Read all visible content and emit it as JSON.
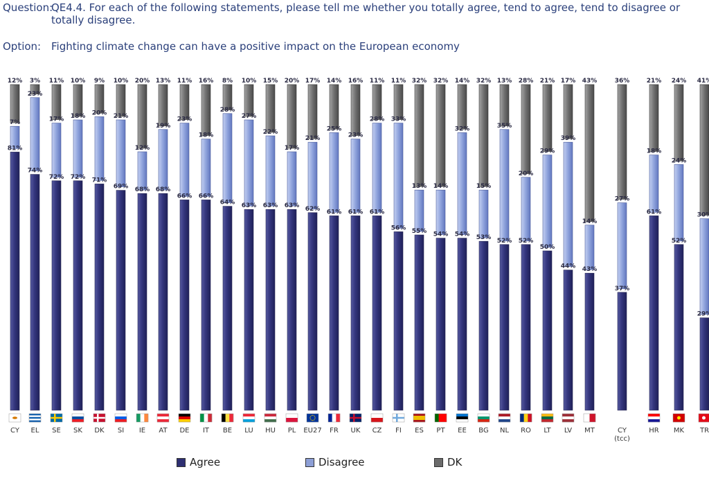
{
  "question": {
    "label": "Question:",
    "text": "QE4.4. For each of the following statements, please tell me whether you totally agree, tend to agree, tend to disagree or totally disagree."
  },
  "option": {
    "label": "Option:",
    "text": "Fighting climate change can have a positive impact on the European economy"
  },
  "colors": {
    "agree": "#2e2f72",
    "disagree": "#8d9fd6",
    "dk": "#6b6b6b"
  },
  "chart_data": {
    "type": "bar",
    "stacked": true,
    "unit": "%",
    "categories": [
      "CY",
      "EL",
      "SE",
      "SK",
      "DK",
      "SI",
      "IE",
      "AT",
      "DE",
      "IT",
      "BE",
      "LU",
      "HU",
      "PL",
      "EU27",
      "FR",
      "UK",
      "CZ",
      "FI",
      "ES",
      "PT",
      "EE",
      "BG",
      "NL",
      "RO",
      "LT",
      "LV",
      "MT",
      "CY (tcc)",
      "HR",
      "MK",
      "TR"
    ],
    "category_lines": [
      [
        "CY"
      ],
      [
        "EL"
      ],
      [
        "SE"
      ],
      [
        "SK"
      ],
      [
        "DK"
      ],
      [
        "SI"
      ],
      [
        "IE"
      ],
      [
        "AT"
      ],
      [
        "DE"
      ],
      [
        "IT"
      ],
      [
        "BE"
      ],
      [
        "LU"
      ],
      [
        "HU"
      ],
      [
        "PL"
      ],
      [
        "EU27"
      ],
      [
        "FR"
      ],
      [
        "UK"
      ],
      [
        "CZ"
      ],
      [
        "FI"
      ],
      [
        "ES"
      ],
      [
        "PT"
      ],
      [
        "EE"
      ],
      [
        "BG"
      ],
      [
        "NL"
      ],
      [
        "RO"
      ],
      [
        "LT"
      ],
      [
        "LV"
      ],
      [
        "MT"
      ],
      [
        "CY",
        "(tcc)"
      ],
      [
        "HR"
      ],
      [
        "MK"
      ],
      [
        "TR"
      ]
    ],
    "series": [
      {
        "name": "Agree",
        "values": [
          81,
          74,
          72,
          72,
          71,
          69,
          68,
          68,
          66,
          66,
          64,
          63,
          63,
          63,
          62,
          61,
          61,
          61,
          56,
          55,
          54,
          54,
          53,
          52,
          52,
          50,
          44,
          43,
          37,
          61,
          52,
          29
        ]
      },
      {
        "name": "Disagree",
        "values": [
          7,
          23,
          17,
          18,
          20,
          21,
          12,
          19,
          23,
          18,
          28,
          27,
          22,
          17,
          21,
          25,
          23,
          28,
          33,
          13,
          14,
          32,
          15,
          35,
          20,
          29,
          39,
          14,
          27,
          18,
          24,
          30
        ]
      },
      {
        "name": "DK",
        "values": [
          12,
          3,
          11,
          10,
          9,
          10,
          20,
          13,
          11,
          16,
          8,
          10,
          15,
          20,
          17,
          14,
          16,
          11,
          11,
          32,
          32,
          14,
          32,
          13,
          28,
          21,
          17,
          43,
          36,
          21,
          24,
          41
        ]
      }
    ],
    "legend": [
      "Agree",
      "Disagree",
      "DK"
    ],
    "legend_position": "bottom",
    "ylim": [
      0,
      100
    ]
  }
}
